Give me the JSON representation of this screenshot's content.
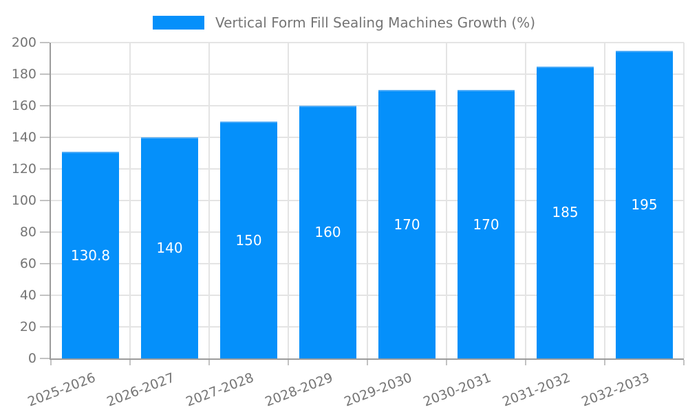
{
  "chart_data": {
    "type": "bar",
    "title": "Vertical Form Fill Sealing Machines Growth (%)",
    "categories": [
      "2025-2026",
      "2026-2027",
      "2027-2028",
      "2028-2029",
      "2029-2030",
      "2030-2031",
      "2031-2032",
      "2032-2033"
    ],
    "values": [
      130.8,
      140,
      150,
      160,
      170,
      170,
      185,
      195
    ],
    "value_labels": [
      "130.8",
      "140",
      "150",
      "160",
      "170",
      "170",
      "185",
      "195"
    ],
    "xlabel": "",
    "ylabel": "",
    "ylim": [
      0,
      200
    ],
    "y_tick_step": 20,
    "y_tick_labels": [
      "0",
      "20",
      "40",
      "60",
      "80",
      "100",
      "120",
      "140",
      "160",
      "180",
      "200"
    ],
    "grid": true,
    "legend_position": "top",
    "colors": {
      "bar": "#0590fa",
      "bar_top_edge": "#4dabf7",
      "axis": "#9b9b9b",
      "gridline": "#e4e4e4",
      "tick": "#c2c2c2",
      "text": "#757575",
      "value_label": "#ffffff"
    }
  }
}
